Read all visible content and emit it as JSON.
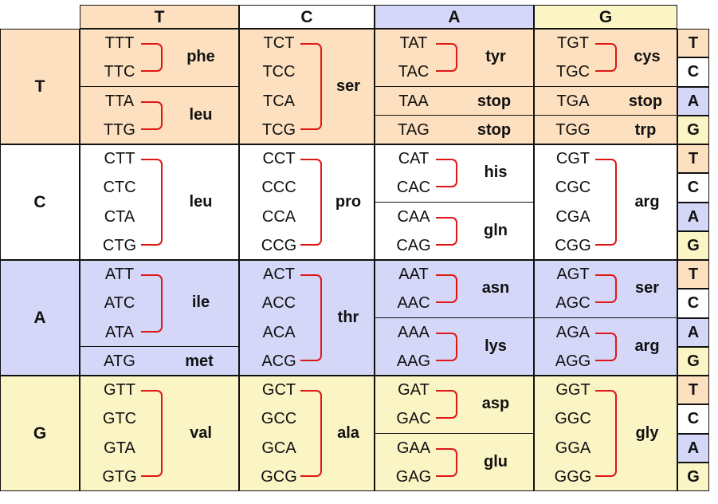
{
  "colors": {
    "T": "#fde0bf",
    "C": "#ffffff",
    "A": "#d5d7f9",
    "G": "#fbf4c4",
    "bracket": "#e01717"
  },
  "first_letters": [
    "T",
    "C",
    "A",
    "G"
  ],
  "second_letters": [
    "T",
    "C",
    "A",
    "G"
  ],
  "third_letters": [
    "T",
    "C",
    "A",
    "G"
  ],
  "blocks": [
    [
      [
        {
          "codons": [
            "TTT",
            "TTC"
          ],
          "aa": "phe"
        },
        {
          "codons": [
            "TTA",
            "TTG"
          ],
          "aa": "leu"
        }
      ],
      [
        {
          "codons": [
            "TCT",
            "TCC",
            "TCA",
            "TCG"
          ],
          "aa": "ser"
        }
      ],
      [
        {
          "codons": [
            "TAT",
            "TAC"
          ],
          "aa": "tyr"
        },
        {
          "codons": [
            "TAA"
          ],
          "aa": "stop"
        },
        {
          "codons": [
            "TAG"
          ],
          "aa": "stop"
        }
      ],
      [
        {
          "codons": [
            "TGT",
            "TGC"
          ],
          "aa": "cys"
        },
        {
          "codons": [
            "TGA"
          ],
          "aa": "stop"
        },
        {
          "codons": [
            "TGG"
          ],
          "aa": "trp"
        }
      ]
    ],
    [
      [
        {
          "codons": [
            "CTT",
            "CTC",
            "CTA",
            "CTG"
          ],
          "aa": "leu"
        }
      ],
      [
        {
          "codons": [
            "CCT",
            "CCC",
            "CCA",
            "CCG"
          ],
          "aa": "pro"
        }
      ],
      [
        {
          "codons": [
            "CAT",
            "CAC"
          ],
          "aa": "his"
        },
        {
          "codons": [
            "CAA",
            "CAG"
          ],
          "aa": "gln"
        }
      ],
      [
        {
          "codons": [
            "CGT",
            "CGC",
            "CGA",
            "CGG"
          ],
          "aa": "arg"
        }
      ]
    ],
    [
      [
        {
          "codons": [
            "ATT",
            "ATC",
            "ATA"
          ],
          "aa": "ile"
        },
        {
          "codons": [
            "ATG"
          ],
          "aa": "met"
        }
      ],
      [
        {
          "codons": [
            "ACT",
            "ACC",
            "ACA",
            "ACG"
          ],
          "aa": "thr"
        }
      ],
      [
        {
          "codons": [
            "AAT",
            "AAC"
          ],
          "aa": "asn"
        },
        {
          "codons": [
            "AAA",
            "AAG"
          ],
          "aa": "lys"
        }
      ],
      [
        {
          "codons": [
            "AGT",
            "AGC"
          ],
          "aa": "ser"
        },
        {
          "codons": [
            "AGA",
            "AGG"
          ],
          "aa": "arg"
        }
      ]
    ],
    [
      [
        {
          "codons": [
            "GTT",
            "GTC",
            "GTA",
            "GTG"
          ],
          "aa": "val"
        }
      ],
      [
        {
          "codons": [
            "GCT",
            "GCC",
            "GCA",
            "GCG"
          ],
          "aa": "ala"
        }
      ],
      [
        {
          "codons": [
            "GAT",
            "GAC"
          ],
          "aa": "asp"
        },
        {
          "codons": [
            "GAA",
            "GAG"
          ],
          "aa": "glu"
        }
      ],
      [
        {
          "codons": [
            "GGT",
            "GGC",
            "GGA",
            "GGG"
          ],
          "aa": "gly"
        }
      ]
    ]
  ]
}
